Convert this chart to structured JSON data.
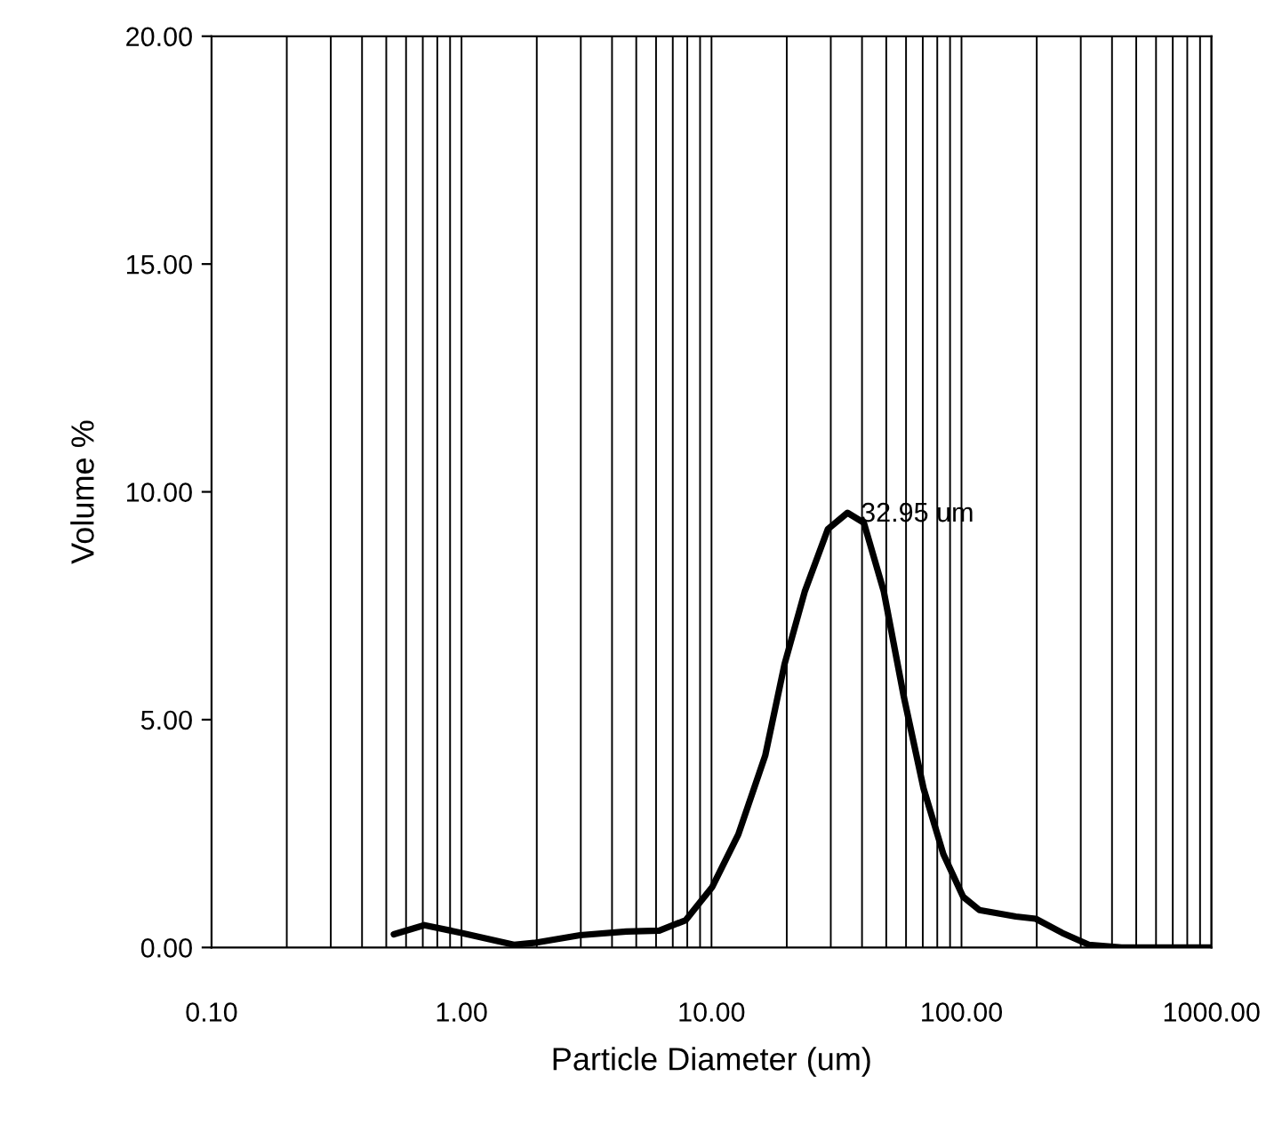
{
  "chart_data": {
    "type": "line",
    "xlabel": "Particle Diameter (um)",
    "ylabel": "Volume %",
    "log": "x",
    "grid": "x",
    "xlim": [
      0.1,
      1000
    ],
    "ylim": [
      0,
      20
    ],
    "xticks": [
      {
        "value": 0.1,
        "label": "0.10"
      },
      {
        "value": 1,
        "label": "1.00"
      },
      {
        "value": 10,
        "label": "10.00"
      },
      {
        "value": 100,
        "label": "100.00"
      },
      {
        "value": 1000,
        "label": "1000.00"
      }
    ],
    "yticks": [
      {
        "value": 0,
        "label": "0.00"
      },
      {
        "value": 5,
        "label": "5.00"
      },
      {
        "value": 10,
        "label": "10.00"
      },
      {
        "value": 15,
        "label": "15.00"
      },
      {
        "value": 20,
        "label": "20.00"
      }
    ],
    "series": [
      {
        "color": "#000000",
        "x": [
          0.536,
          0.71,
          1.0,
          1.62,
          1.95,
          2.98,
          4.56,
          6.18,
          7.89,
          10.07,
          12.8,
          16.4,
          19.6,
          23.6,
          29.2,
          35.0,
          40.7,
          48.9,
          58.8,
          70.5,
          84.6,
          101.6,
          118,
          165,
          198,
          253,
          323,
          437,
          1000
        ],
        "values": [
          0.29,
          0.49,
          0.32,
          0.06,
          0.1,
          0.27,
          0.35,
          0.37,
          0.6,
          1.33,
          2.48,
          4.21,
          6.22,
          7.81,
          9.18,
          9.54,
          9.32,
          7.81,
          5.5,
          3.49,
          2.05,
          1.11,
          0.82,
          0.68,
          0.63,
          0.32,
          0.06,
          0,
          0
        ]
      }
    ],
    "annotations": [
      {
        "text": "32.95 um",
        "x": 32.95,
        "y": 9.5
      }
    ]
  }
}
